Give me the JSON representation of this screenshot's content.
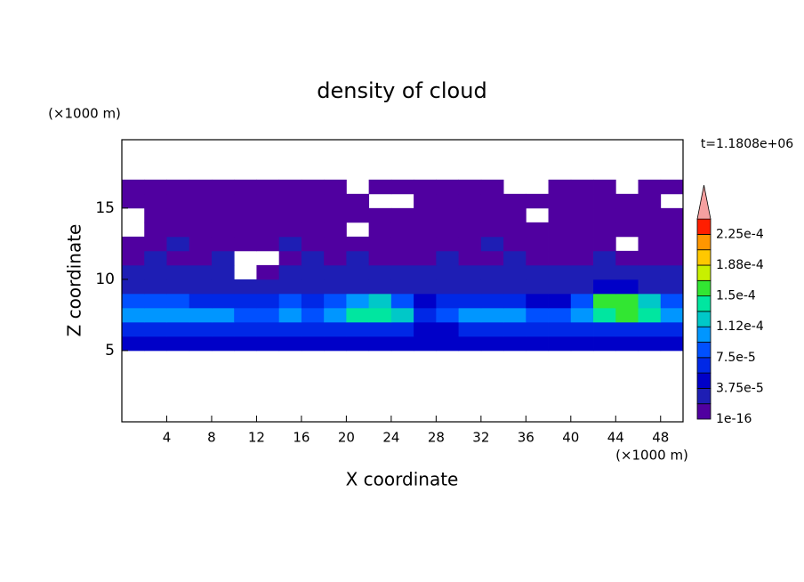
{
  "chart_data": {
    "type": "contour",
    "title": "density of cloud",
    "time_label": "t=1.1808e+06",
    "xlabel": "X coordinate",
    "ylabel": "Z coordinate",
    "x_unit": "(×1000 m)",
    "y_unit": "(×1000 m)",
    "xlim": [
      0,
      50
    ],
    "ylim": [
      0,
      19.8
    ],
    "xticks": [
      4,
      8,
      12,
      16,
      20,
      24,
      28,
      32,
      36,
      40,
      44,
      48
    ],
    "yticks": [
      5,
      10,
      15
    ],
    "x": [
      1,
      3,
      5,
      7,
      9,
      11,
      13,
      15,
      17,
      19,
      21,
      23,
      25,
      27,
      29,
      31,
      33,
      35,
      37,
      39,
      41,
      43,
      45,
      47,
      49
    ],
    "z": [
      5.5,
      6.5,
      7.5,
      8.5,
      9.5,
      10.5,
      11.5,
      12.5,
      13.5,
      14.5,
      15.5,
      16.5
    ],
    "values": [
      [
        4e-05,
        4e-05,
        4e-05,
        4e-05,
        4e-05,
        4e-05,
        4e-05,
        4e-05,
        4e-05,
        4e-05,
        4e-05,
        4e-05,
        4e-05,
        4e-05,
        4e-05,
        4e-05,
        4e-05,
        4e-05,
        4e-05,
        4e-05,
        4e-05,
        4e-05,
        4e-05,
        4e-05,
        4e-05
      ],
      [
        7e-05,
        7e-05,
        7e-05,
        7e-05,
        7e-05,
        7e-05,
        7e-05,
        7e-05,
        7e-05,
        7e-05,
        7e-05,
        7e-05,
        7e-05,
        5e-05,
        5e-05,
        7e-05,
        7e-05,
        7e-05,
        7e-05,
        7e-05,
        7e-05,
        7e-05,
        7e-05,
        7e-05,
        7e-05
      ],
      [
        0.00011,
        0.00011,
        0.00011,
        0.00011,
        0.00011,
        9e-05,
        9e-05,
        0.00011,
        9e-05,
        0.00011,
        0.00014,
        0.00014,
        0.00013,
        7e-05,
        9e-05,
        0.00011,
        0.00011,
        0.0001,
        9e-05,
        9e-05,
        0.00011,
        0.00014,
        0.00015,
        0.00014,
        0.00011
      ],
      [
        9e-05,
        9e-05,
        8e-05,
        7e-05,
        6e-05,
        6e-05,
        7e-05,
        8e-05,
        6e-05,
        9e-05,
        0.00011,
        0.00012,
        9e-05,
        5e-05,
        6e-05,
        7e-05,
        7e-05,
        6e-05,
        5e-05,
        5e-05,
        9e-05,
        0.00015,
        0.00016,
        0.00013,
        9e-05
      ],
      [
        3e-05,
        3e-05,
        3e-05,
        3e-05,
        3e-05,
        3e-05,
        3e-05,
        3e-05,
        3e-05,
        3e-05,
        3e-05,
        3e-05,
        3e-05,
        3e-05,
        3e-05,
        3e-05,
        3e-05,
        3e-05,
        3e-05,
        3e-05,
        3e-05,
        5e-05,
        5e-05,
        3e-05,
        3e-05
      ],
      [
        2e-05,
        2e-05,
        2e-05,
        2e-05,
        2e-05,
        null,
        1e-06,
        2e-05,
        2e-05,
        2e-05,
        2e-05,
        2e-05,
        2e-05,
        2e-05,
        2e-05,
        2e-05,
        2e-05,
        2e-05,
        2e-05,
        2e-05,
        2e-05,
        2e-05,
        2e-05,
        2e-05,
        2e-05
      ],
      [
        1e-06,
        2e-05,
        1e-06,
        1e-06,
        2e-05,
        null,
        null,
        1e-06,
        2e-05,
        1e-06,
        2e-05,
        1e-06,
        1e-06,
        1e-06,
        2e-05,
        1e-06,
        1e-06,
        2e-05,
        1e-06,
        1e-06,
        1e-06,
        2e-05,
        1e-06,
        1e-06,
        1e-06
      ],
      [
        1e-06,
        1e-06,
        2e-05,
        1e-06,
        1e-06,
        1e-06,
        1e-06,
        2e-05,
        1e-06,
        1e-06,
        1e-06,
        1e-06,
        1e-06,
        1e-06,
        1e-06,
        1e-06,
        2e-05,
        1e-06,
        1e-06,
        1e-06,
        1e-06,
        1e-06,
        null,
        1e-06,
        1e-06
      ],
      [
        null,
        1e-06,
        1e-06,
        1e-06,
        1e-06,
        1e-06,
        1e-06,
        1e-06,
        1e-06,
        1e-06,
        null,
        1e-06,
        1e-06,
        1e-06,
        1e-06,
        1e-06,
        1e-06,
        1e-06,
        1e-06,
        1e-06,
        1e-06,
        1e-06,
        1e-06,
        1e-06,
        1e-06
      ],
      [
        null,
        1e-06,
        1e-06,
        1e-06,
        1e-06,
        1e-06,
        1e-06,
        1e-06,
        1e-06,
        1e-06,
        1e-06,
        1e-06,
        1e-06,
        1e-06,
        1e-06,
        1e-06,
        1e-06,
        1e-06,
        null,
        1e-06,
        1e-06,
        1e-06,
        1e-06,
        1e-06,
        1e-06
      ],
      [
        1e-06,
        1e-06,
        1e-06,
        1e-06,
        1e-06,
        1e-06,
        1e-06,
        1e-06,
        1e-06,
        1e-06,
        1e-06,
        null,
        null,
        1e-06,
        1e-06,
        1e-06,
        1e-06,
        1e-06,
        1e-06,
        1e-06,
        1e-06,
        1e-06,
        1e-06,
        1e-06,
        null
      ],
      [
        1e-06,
        1e-06,
        1e-06,
        1e-06,
        1e-06,
        1e-06,
        1e-06,
        1e-06,
        1e-06,
        1e-06,
        null,
        1e-06,
        1e-06,
        1e-06,
        1e-06,
        1e-06,
        1e-06,
        null,
        null,
        1e-06,
        1e-06,
        1e-06,
        null,
        1e-06,
        1e-06
      ]
    ],
    "levels": [
      1e-16,
      1.875e-05,
      3.75e-05,
      5.625e-05,
      7.5e-05,
      9.375e-05,
      0.0001125,
      0.00013125,
      0.00015,
      0.00016875,
      0.0001875,
      0.00020625,
      0.000225,
      0.00024375
    ],
    "colors": [
      "#5000a0",
      "#1e1eb4",
      "#0000c8",
      "#0028e6",
      "#0050ff",
      "#0096ff",
      "#00c8c8",
      "#00e6a0",
      "#32e632",
      "#c8f000",
      "#ffc800",
      "#ff9600",
      "#ff1e00"
    ],
    "extend_color": "#f5a0a0",
    "colorbar_ticks": [
      1e-16,
      {
        "value": 3.75e-05,
        "label": "3.75e-5"
      },
      {
        "value": 7.5e-05,
        "label": "7.5e-5"
      },
      {
        "value": 0.0001125,
        "label": "1.12e-4"
      },
      {
        "value": 0.00015,
        "label": "1.5e-4"
      },
      {
        "value": 0.0001875,
        "label": "1.88e-4"
      },
      {
        "value": 0.000225,
        "label": "2.25e-4"
      }
    ]
  }
}
